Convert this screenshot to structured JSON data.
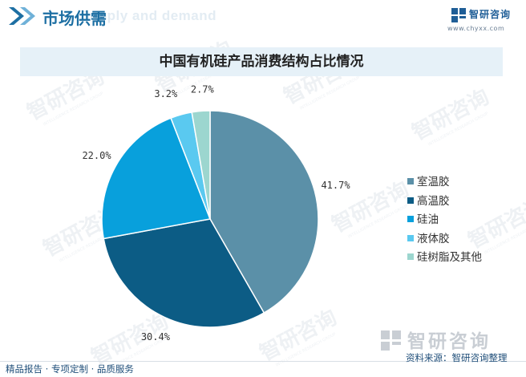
{
  "header": {
    "section_title": "市场供需",
    "background_text": "Supply and demand",
    "brand_name": "智研咨询",
    "brand_url": "www.chyxx.com"
  },
  "watermark": {
    "text": "智研咨询",
    "subtext": "INTELLIGENCE RESEARCH GROUP"
  },
  "chart_data": {
    "type": "pie",
    "title": "中国有机硅产品消费结构占比情况",
    "categories": [
      "室温胶",
      "高温胶",
      "硅油",
      "液体胶",
      "硅树脂及其他"
    ],
    "values": [
      41.7,
      30.4,
      22.0,
      3.2,
      2.7
    ],
    "labels": [
      "41.7%",
      "30.4%",
      "22.0%",
      "3.2%",
      "2.7%"
    ],
    "colors": [
      "#5b90a8",
      "#0c5c85",
      "#08a0dc",
      "#5ac9f0",
      "#9cd6cf"
    ],
    "legend_position": "right"
  },
  "footer": {
    "left_text": "精品报告 · 专项定制 · 品质服务",
    "brand_name": "智研咨询",
    "source": "资料来源：智研咨询整理"
  }
}
